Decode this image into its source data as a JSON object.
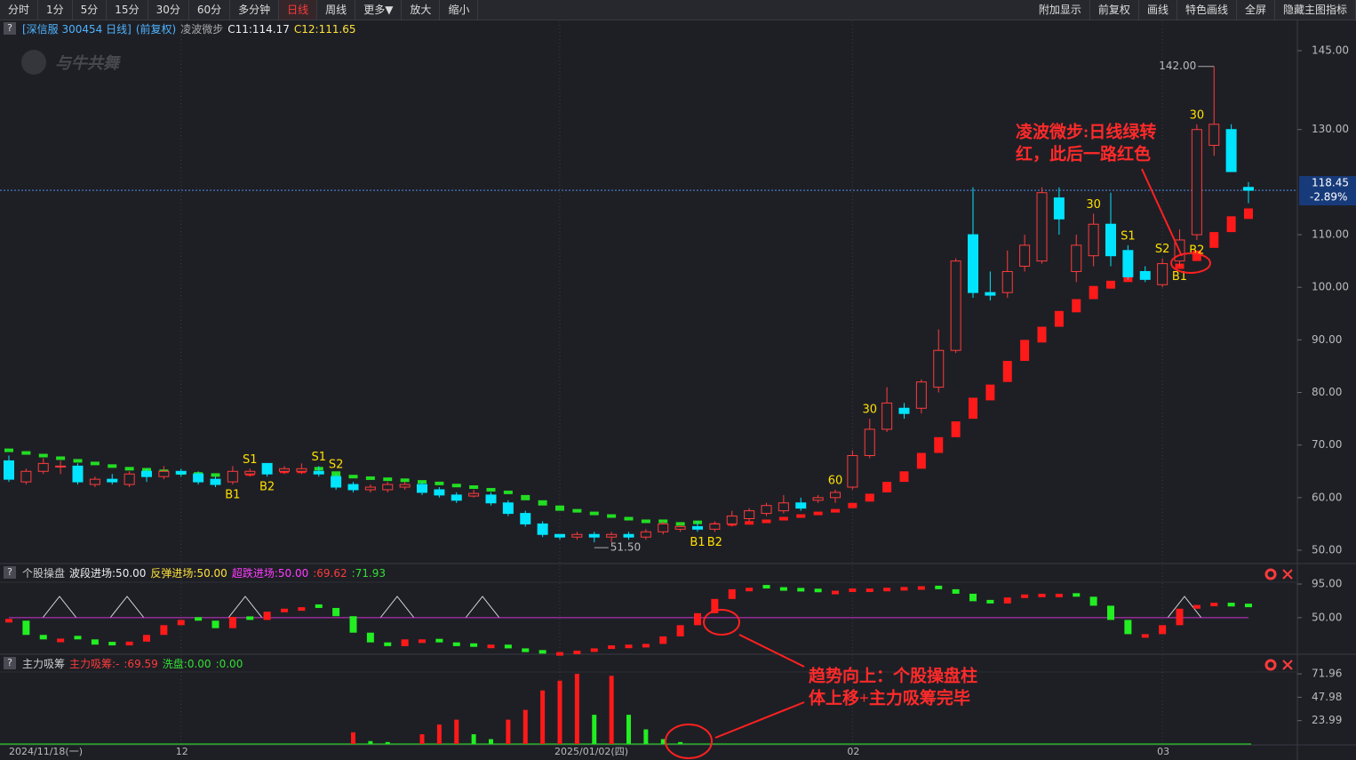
{
  "toolbar": {
    "left": [
      "分时",
      "1分",
      "5分",
      "15分",
      "30分",
      "60分",
      "多分钟",
      "日线",
      "周线",
      "更多▼",
      "放大",
      "缩小"
    ],
    "right": [
      "附加显示",
      "前复权",
      "画线",
      "特色画线",
      "全屏",
      "隐藏主图指标"
    ],
    "active": 7
  },
  "help": "?",
  "watermark": "与牛共舞",
  "notes": [
    [
      "凌波微步:日线绿转",
      "红，此后一路红色"
    ],
    [
      "趋势向上：个股操盘柱",
      "体上移+主力吸筹完毕"
    ]
  ],
  "chart_data": [
    {
      "type": "candlestick",
      "legend": [
        {
          "text": "[深信服 300454 日线]",
          "color": "#4fb3ff"
        },
        {
          "text": "(前复权)",
          "color": "#4fb3ff"
        },
        {
          "text": "凌波微步",
          "color": "#aaaaaa"
        },
        {
          "text": "C11:114.17",
          "color": "#eeeeee"
        },
        {
          "text": "C12:111.65",
          "color": "#ffe23a"
        }
      ],
      "categories": [
        "2024/11/18(一)",
        null,
        null,
        null,
        null,
        null,
        null,
        null,
        null,
        null,
        "12",
        null,
        null,
        null,
        null,
        null,
        null,
        null,
        null,
        null,
        null,
        null,
        null,
        null,
        null,
        null,
        null,
        null,
        null,
        null,
        null,
        null,
        "2025/01/02(四)",
        null,
        null,
        null,
        null,
        null,
        null,
        null,
        null,
        null,
        null,
        null,
        null,
        null,
        null,
        null,
        null,
        "02",
        null,
        null,
        null,
        null,
        null,
        null,
        null,
        null,
        null,
        null,
        null,
        null,
        null,
        null,
        null,
        null,
        null,
        "03",
        null,
        null,
        null,
        null,
        null
      ],
      "open": [
        67,
        63,
        65,
        66,
        66,
        62.5,
        63.5,
        62.5,
        65,
        64,
        65,
        64.5,
        63.5,
        63,
        64.5,
        66.5,
        65,
        65,
        65,
        64,
        62.5,
        61.5,
        61.5,
        62,
        62.5,
        61.5,
        60.5,
        60.3,
        60.5,
        59,
        57,
        55,
        53,
        52.5,
        53,
        52.5,
        53,
        52.5,
        53.5,
        54,
        54.5,
        54,
        55,
        56,
        57,
        57.5,
        59,
        59.5,
        60,
        62,
        68,
        73,
        77,
        77,
        81,
        88,
        110,
        99,
        99,
        104,
        105,
        117,
        103,
        106,
        112,
        107,
        103,
        100.5,
        105,
        110,
        127,
        130,
        119
      ],
      "high": [
        68,
        65.5,
        67.5,
        67,
        66.5,
        64,
        64.5,
        65,
        65.5,
        66,
        65.5,
        65,
        64,
        66,
        65.5,
        66.5,
        66,
        66.5,
        66,
        64.5,
        63,
        62.5,
        63,
        63,
        63,
        62,
        61,
        61.5,
        61,
        59.5,
        57.5,
        55.5,
        53,
        53.5,
        53.5,
        53.5,
        53.5,
        54,
        55.5,
        55,
        55.5,
        55.5,
        57.5,
        58,
        59,
        60.5,
        60,
        60.5,
        61.5,
        69,
        75,
        81,
        78,
        82.5,
        92,
        105.5,
        119,
        103,
        107,
        110,
        119,
        119,
        110,
        114,
        118,
        108,
        104,
        105.5,
        111,
        131,
        142,
        131,
        120
      ],
      "low": [
        63,
        62.5,
        64.5,
        64.5,
        62.5,
        62,
        62.5,
        62,
        63,
        63.5,
        64,
        62.5,
        62,
        62.5,
        64,
        64,
        64.5,
        64.5,
        64,
        61.5,
        61,
        61,
        61,
        61.5,
        60.5,
        60,
        59,
        60,
        58.5,
        56.5,
        54.5,
        52.5,
        52,
        52,
        51.5,
        51.5,
        52,
        52,
        53,
        53.5,
        53.5,
        53.5,
        54.5,
        55.5,
        56.5,
        57,
        57.5,
        59,
        59,
        61.5,
        67.5,
        72.5,
        75,
        76,
        80,
        87.5,
        98,
        97.5,
        98,
        103,
        104.5,
        110,
        101,
        104,
        104,
        101.5,
        101,
        100,
        104,
        109,
        125,
        122,
        116
      ],
      "close": [
        63.5,
        65,
        66.5,
        66,
        63,
        63.5,
        63,
        64.5,
        64,
        65,
        64.5,
        63,
        62.5,
        65,
        65,
        64.5,
        65.5,
        65.5,
        64.5,
        62,
        61.5,
        62,
        62.5,
        62.5,
        61,
        60.5,
        59.5,
        60.8,
        59,
        57,
        55,
        53,
        52.5,
        53,
        52.5,
        53,
        52.5,
        53.5,
        55,
        54.5,
        54,
        55,
        56.5,
        57.5,
        58.5,
        59,
        58,
        60,
        61,
        68,
        73,
        78,
        76,
        82,
        88,
        105,
        99,
        98.5,
        103,
        108,
        118,
        113,
        108,
        112,
        106,
        102,
        101.5,
        104.5,
        109,
        130,
        131,
        122,
        118.45
      ],
      "trail": [
        69,
        68.5,
        68,
        67.5,
        67,
        66.5,
        66,
        65.5,
        65.3,
        65,
        64.7,
        64.5,
        64.3,
        64,
        64.5,
        65.5,
        65,
        65,
        65.5,
        64.5,
        64,
        63.7,
        63.5,
        63.3,
        63,
        62.7,
        62.3,
        62,
        61.5,
        61,
        60,
        59,
        58,
        57.5,
        57,
        56.5,
        56,
        55.5,
        55.5,
        55,
        55.3,
        54.8,
        55,
        55.2,
        55.5,
        56,
        56.5,
        57,
        57.5,
        58.5,
        60,
        62,
        64,
        67,
        70,
        73,
        77,
        80,
        84,
        88,
        91,
        94,
        96.5,
        99,
        100.5,
        101.5,
        102.5,
        103,
        104,
        106,
        109,
        112,
        114
      ],
      "signals_above": [
        null,
        null,
        null,
        null,
        null,
        null,
        null,
        null,
        null,
        null,
        null,
        null,
        null,
        null,
        "S1",
        null,
        null,
        null,
        "S1",
        "S2",
        null,
        null,
        null,
        null,
        null,
        null,
        null,
        null,
        null,
        null,
        null,
        null,
        null,
        null,
        null,
        null,
        null,
        null,
        null,
        null,
        null,
        null,
        null,
        null,
        null,
        null,
        null,
        null,
        "60",
        null,
        "30",
        null,
        null,
        null,
        null,
        null,
        null,
        null,
        null,
        null,
        null,
        null,
        null,
        "30",
        null,
        "S1",
        null,
        "S2",
        null,
        "30",
        null,
        null,
        null
      ],
      "signals_below": [
        null,
        null,
        null,
        null,
        null,
        null,
        null,
        null,
        null,
        null,
        null,
        null,
        null,
        "B1",
        null,
        "B2",
        null,
        null,
        null,
        null,
        null,
        null,
        null,
        null,
        null,
        null,
        null,
        null,
        null,
        null,
        null,
        null,
        null,
        null,
        null,
        null,
        null,
        null,
        null,
        null,
        "B1",
        "B2",
        null,
        null,
        null,
        null,
        null,
        null,
        null,
        null,
        null,
        null,
        null,
        null,
        null,
        null,
        null,
        null,
        null,
        null,
        null,
        null,
        null,
        null,
        null,
        null,
        null,
        null,
        "B1",
        "B2",
        null,
        null,
        null
      ],
      "high_label": "142.00",
      "low_label": "51.50",
      "change_label": "-2.89%",
      "up_color": "#ff3b3b",
      "down_color": "#00e4ff",
      "trail_up_color": "#ff1a1a",
      "trail_down_color": "#22dd22",
      "ylim": [
        50,
        145
      ],
      "yticks": [
        {
          "value": 145,
          "label": "145.00"
        },
        {
          "value": 130,
          "label": "130.00"
        },
        {
          "value": 110,
          "label": "110.00"
        },
        {
          "value": 100,
          "label": "100.00"
        },
        {
          "value": 90,
          "label": "90.00"
        },
        {
          "value": 80,
          "label": "80.00"
        },
        {
          "value": 70,
          "label": "70.00"
        },
        {
          "value": 60,
          "label": "60.00"
        },
        {
          "value": 50,
          "label": "50.00"
        }
      ]
    },
    {
      "type": "step",
      "legend": [
        {
          "text": "个股操盘",
          "color": "#cccccc"
        },
        {
          "text": "波段进场:50.00",
          "color": "#eeeeee"
        },
        {
          "text": "反弹进场:50.00",
          "color": "#ffe23a"
        },
        {
          "text": "超跌进场:50.00",
          "color": "#ff3cff"
        },
        {
          "text": ":69.62",
          "color": "#ff3b3b"
        },
        {
          "text": ":71.93",
          "color": "#33e033"
        }
      ],
      "values": [
        46,
        27,
        21,
        22,
        21,
        14,
        13,
        18,
        27,
        40,
        47,
        46,
        36,
        51,
        47,
        58,
        62,
        64,
        63,
        52,
        30,
        17,
        12,
        21,
        21,
        17,
        12,
        11,
        14,
        9,
        4,
        2,
        4,
        6,
        9,
        13,
        14,
        15,
        25,
        40,
        56,
        75,
        88,
        90,
        89,
        86,
        85,
        84,
        86,
        89,
        89,
        90,
        91,
        92,
        88,
        82,
        72,
        69,
        77,
        81,
        82,
        82,
        78,
        66,
        47,
        28,
        28,
        40,
        62,
        67,
        70,
        65,
        64
      ],
      "ref_line": 50,
      "ref_color": "#d030d0",
      "up_color": "#ff1a1a",
      "down_color": "#22ee22",
      "ylim": [
        0,
        95
      ],
      "yticks": [
        {
          "value": 95,
          "label": "95.00"
        },
        {
          "value": 50,
          "label": "50.00"
        }
      ]
    },
    {
      "type": "bar",
      "legend": [
        {
          "text": "主力吸筹",
          "color": "#cccccc"
        },
        {
          "text": "主力吸筹:-",
          "color": "#ff3b3b"
        },
        {
          "text": ":69.59",
          "color": "#ff3b3b"
        },
        {
          "text": "洗盘:0.00",
          "color": "#33e033"
        },
        {
          "text": ":0.00",
          "color": "#33e033"
        }
      ],
      "values": [
        0,
        0,
        0,
        0,
        0,
        0,
        0,
        0,
        0,
        0,
        0,
        0,
        0,
        0,
        0,
        0,
        0,
        0,
        0,
        0,
        12,
        3,
        2,
        0,
        10,
        20,
        25,
        10,
        5,
        25,
        35,
        55,
        65,
        72,
        30,
        70,
        30,
        15,
        5,
        2,
        0,
        0,
        0,
        0,
        0,
        0,
        0,
        0,
        0,
        0,
        0,
        0,
        0,
        0,
        0,
        0,
        0,
        0,
        0,
        0,
        0,
        0,
        0,
        0,
        0,
        0,
        0,
        0,
        0,
        0,
        0,
        0,
        0
      ],
      "up_color": "#ff1a1a",
      "down_color": "#22ee22",
      "ylim": [
        0,
        73
      ],
      "yticks": [
        71.96,
        47.98,
        23.99
      ]
    }
  ]
}
